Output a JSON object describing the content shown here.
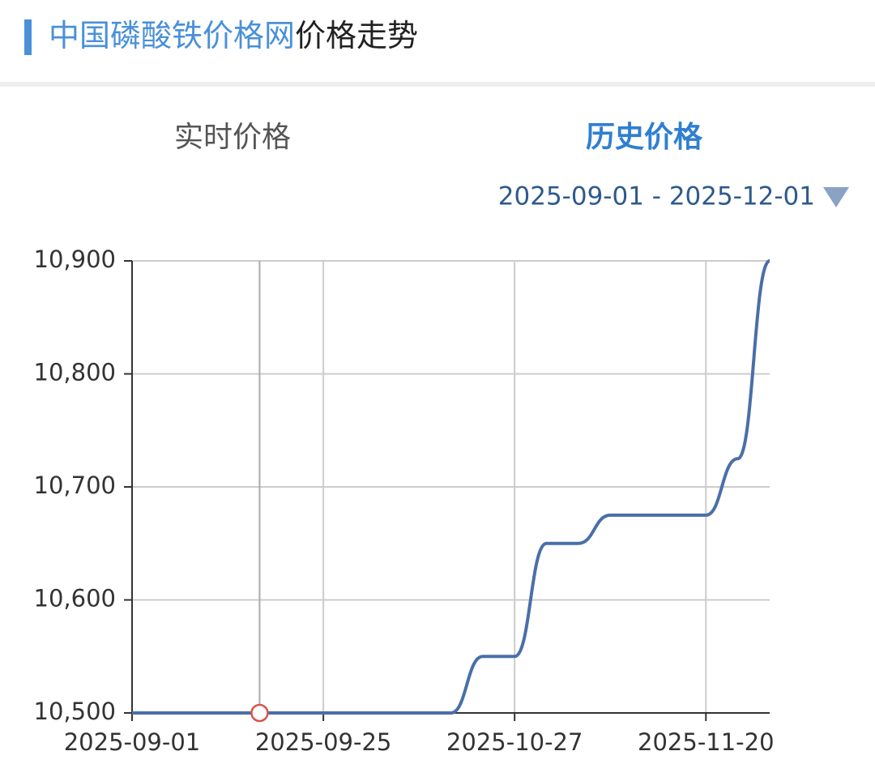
{
  "header": {
    "title_brand": "中国磷酸铁价格网",
    "title_rest": "价格走势"
  },
  "tabs": [
    "实时价格",
    "历史价格"
  ],
  "date_range": "2025-09-01 - 2025-12-01",
  "chart_data": {
    "type": "line",
    "categories": [
      "2025-09-01",
      null,
      null,
      null,
      null,
      null,
      "2025-09-25",
      null,
      null,
      null,
      null,
      null,
      "2025-10-27",
      null,
      null,
      null,
      null,
      null,
      "2025-11-20",
      null,
      null
    ],
    "series": [
      {
        "color": "#4a6fa8",
        "values": [
          10500,
          10500,
          10500,
          10500,
          10500,
          10500,
          10500,
          10500,
          10500,
          10500,
          10500,
          10550,
          10550,
          10650,
          10650,
          10675,
          10675,
          10675,
          10675,
          10725,
          10900
        ]
      }
    ],
    "ylim": [
      10500,
      10900
    ],
    "yticks": [
      {
        "value": 10500,
        "label": "10,500"
      },
      {
        "value": 10600,
        "label": "10,600"
      },
      {
        "value": 10700,
        "label": "10,700"
      },
      {
        "value": 10800,
        "label": "10,800"
      },
      {
        "value": 10900,
        "label": "10,900"
      }
    ],
    "grid": true
  }
}
